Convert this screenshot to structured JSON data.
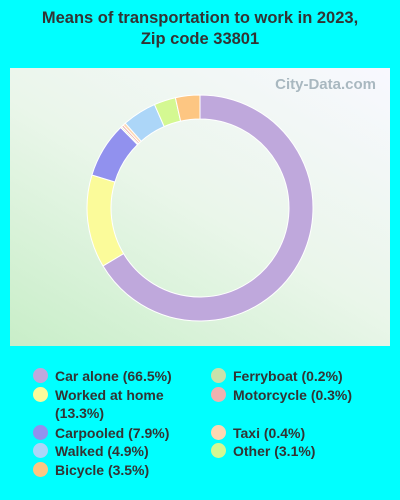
{
  "chart_data": {
    "type": "donut",
    "title": "Means of transportation to work in 2023, Zip code 33801",
    "watermark": "City-Data.com",
    "categories": [
      "Car alone",
      "Worked at home",
      "Carpooled",
      "Ferryboat",
      "Motorcycle",
      "Taxi",
      "Walked",
      "Other",
      "Bicycle"
    ],
    "values": [
      66.5,
      13.3,
      7.9,
      0.2,
      0.3,
      0.4,
      4.9,
      3.1,
      3.5
    ],
    "value_labels": [
      "(66.5%)",
      "(13.3%)",
      "(7.9%)",
      "(0.2%)",
      "(0.3%)",
      "(0.4%)",
      "(4.9%)",
      "(3.1%)",
      "(3.5%)"
    ],
    "colors": [
      "#bfa8dc",
      "#fbfb9a",
      "#9191ee",
      "#c9e2ab",
      "#f0b2b0",
      "#fdd8b2",
      "#acd6f8",
      "#d4f892",
      "#fdc682"
    ]
  }
}
